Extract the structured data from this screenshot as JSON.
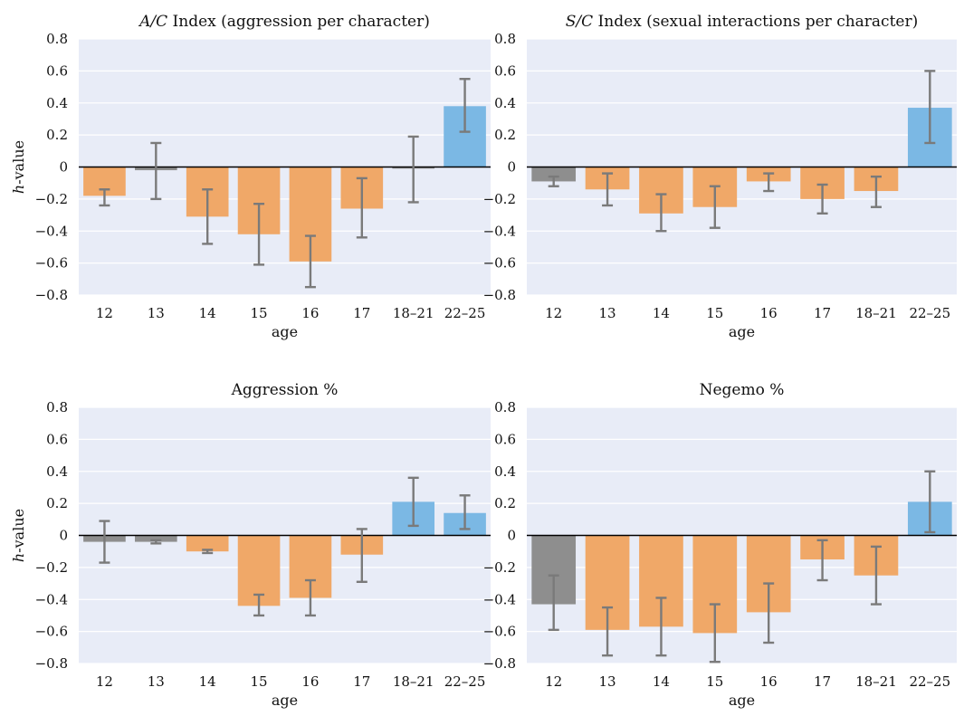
{
  "colors": {
    "plot_bg": "#e8ecf7",
    "grid": "#ffffff",
    "negative": "#f0a868",
    "neutral": "#8e8e8e",
    "positive": "#7bb8e4",
    "errorbar": "#7a7a7a",
    "zero_line": "#000000"
  },
  "chart_data": [
    {
      "type": "bar",
      "title_italic": "A/C",
      "title": "Index (aggression per character)",
      "xlabel": "age",
      "ylabel_italic": "h",
      "ylabel": "-value",
      "ylim": [
        -0.8,
        0.8
      ],
      "yticks": [
        -0.8,
        -0.6,
        -0.4,
        -0.2,
        0,
        0.2,
        0.4,
        0.6,
        0.8
      ],
      "ytick_labels": [
        "−0.8",
        "−0.6",
        "−0.4",
        "−0.2",
        "0",
        "0.2",
        "0.4",
        "0.6",
        "0.8"
      ],
      "categories": [
        "12",
        "13",
        "14",
        "15",
        "16",
        "17",
        "18–21",
        "22–25"
      ],
      "values": [
        -0.18,
        -0.02,
        -0.31,
        -0.42,
        -0.59,
        -0.26,
        -0.01,
        0.38
      ],
      "err_low": [
        -0.24,
        -0.2,
        -0.48,
        -0.61,
        -0.75,
        -0.44,
        -0.22,
        0.22
      ],
      "err_high": [
        -0.14,
        0.15,
        -0.14,
        -0.23,
        -0.43,
        -0.07,
        0.19,
        0.55
      ],
      "significance": [
        "negative",
        "neutral",
        "negative",
        "negative",
        "negative",
        "negative",
        "neutral",
        "positive"
      ],
      "grid": true
    },
    {
      "type": "bar",
      "title_italic": "S/C",
      "title": "Index (sexual interactions per character)",
      "xlabel": "age",
      "ylabel_italic": "",
      "ylabel": "",
      "ylim": [
        -0.8,
        0.8
      ],
      "yticks": [
        -0.8,
        -0.6,
        -0.4,
        -0.2,
        0,
        0.2,
        0.4,
        0.6,
        0.8
      ],
      "ytick_labels": [
        "−0.8",
        "−0.6",
        "−0.4",
        "−0.2",
        "0",
        "0.2",
        "0.4",
        "0.6",
        "0.8"
      ],
      "categories": [
        "12",
        "13",
        "14",
        "15",
        "16",
        "17",
        "18–21",
        "22–25"
      ],
      "values": [
        -0.09,
        -0.14,
        -0.29,
        -0.25,
        -0.09,
        -0.2,
        -0.15,
        0.37
      ],
      "err_low": [
        -0.12,
        -0.24,
        -0.4,
        -0.38,
        -0.15,
        -0.29,
        -0.25,
        0.15
      ],
      "err_high": [
        -0.06,
        -0.04,
        -0.17,
        -0.12,
        -0.04,
        -0.11,
        -0.06,
        0.6
      ],
      "significance": [
        "neutral",
        "negative",
        "negative",
        "negative",
        "negative",
        "negative",
        "negative",
        "positive"
      ],
      "grid": true
    },
    {
      "type": "bar",
      "title_italic": "",
      "title": "Aggression %",
      "xlabel": "age",
      "ylabel_italic": "h",
      "ylabel": "-value",
      "ylim": [
        -0.8,
        0.8
      ],
      "yticks": [
        -0.8,
        -0.6,
        -0.4,
        -0.2,
        0,
        0.2,
        0.4,
        0.6,
        0.8
      ],
      "ytick_labels": [
        "−0.8",
        "−0.6",
        "−0.4",
        "−0.2",
        "0",
        "0.2",
        "0.4",
        "0.6",
        "0.8"
      ],
      "categories": [
        "12",
        "13",
        "14",
        "15",
        "16",
        "17",
        "18–21",
        "22–25"
      ],
      "values": [
        -0.04,
        -0.04,
        -0.1,
        -0.44,
        -0.39,
        -0.12,
        0.21,
        0.14
      ],
      "err_low": [
        -0.17,
        -0.05,
        -0.11,
        -0.5,
        -0.5,
        -0.29,
        0.06,
        0.04
      ],
      "err_high": [
        0.09,
        -0.03,
        -0.09,
        -0.37,
        -0.28,
        0.04,
        0.36,
        0.25
      ],
      "significance": [
        "neutral",
        "neutral",
        "negative",
        "negative",
        "negative",
        "negative",
        "positive",
        "positive"
      ],
      "grid": true
    },
    {
      "type": "bar",
      "title_italic": "",
      "title": "Negemo %",
      "xlabel": "age",
      "ylabel_italic": "",
      "ylabel": "",
      "ylim": [
        -0.8,
        0.8
      ],
      "yticks": [
        -0.8,
        -0.6,
        -0.4,
        -0.2,
        0,
        0.2,
        0.4,
        0.6,
        0.8
      ],
      "ytick_labels": [
        "−0.8",
        "−0.6",
        "−0.4",
        "−0.2",
        "0",
        "0.2",
        "0.4",
        "0.6",
        "0.8"
      ],
      "categories": [
        "12",
        "13",
        "14",
        "15",
        "16",
        "17",
        "18–21",
        "22–25"
      ],
      "values": [
        -0.43,
        -0.59,
        -0.57,
        -0.61,
        -0.48,
        -0.15,
        -0.25,
        0.21
      ],
      "err_low": [
        -0.59,
        -0.75,
        -0.75,
        -0.79,
        -0.67,
        -0.28,
        -0.43,
        0.02
      ],
      "err_high": [
        -0.25,
        -0.45,
        -0.39,
        -0.43,
        -0.3,
        -0.03,
        -0.07,
        0.4
      ],
      "significance": [
        "neutral",
        "negative",
        "negative",
        "negative",
        "negative",
        "negative",
        "negative",
        "positive"
      ],
      "grid": true
    }
  ]
}
